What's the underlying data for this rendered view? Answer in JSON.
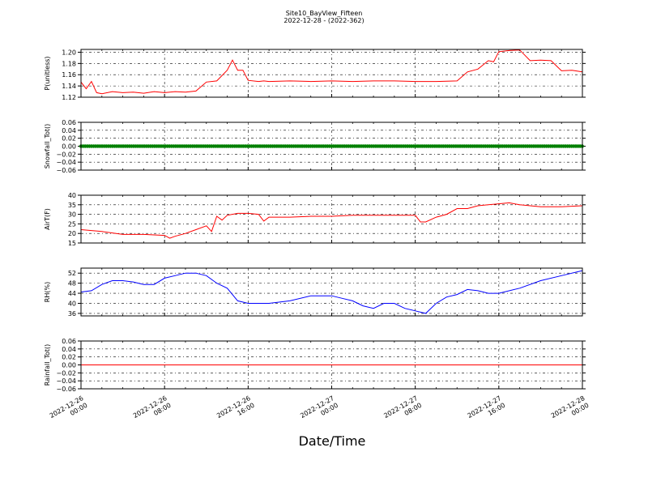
{
  "figure": {
    "title": "Site10_BayView_Fifteen",
    "subtitle": "2022-12-28 - (2022-362)",
    "xlabel": "Date/Time",
    "x_ticks": [
      "2022-12-26 00:00",
      "2022-12-26 08:00",
      "2022-12-26 16:00",
      "2022-12-27 00:00",
      "2022-12-27 08:00",
      "2022-12-27 16:00",
      "2022-12-28 00:00"
    ]
  },
  "chart_data": [
    {
      "type": "line",
      "ylabel": "P(unitless)",
      "color": "#ff0000",
      "ylim": [
        1.12,
        1.205
      ],
      "yticks": [
        1.12,
        1.14,
        1.16,
        1.18,
        1.2
      ],
      "ytick_labels": [
        "1.12",
        "1.14",
        "1.16",
        "1.18",
        "1.20"
      ],
      "grid": true,
      "x": [
        "2022-12-26 00:00",
        "2022-12-26 00:30",
        "2022-12-26 01:00",
        "2022-12-26 01:30",
        "2022-12-26 02:00",
        "2022-12-26 03:00",
        "2022-12-26 04:00",
        "2022-12-26 05:00",
        "2022-12-26 06:00",
        "2022-12-26 07:00",
        "2022-12-26 08:00",
        "2022-12-26 09:00",
        "2022-12-26 10:00",
        "2022-12-26 11:00",
        "2022-12-26 12:00",
        "2022-12-26 13:00",
        "2022-12-26 14:00",
        "2022-12-26 14:30",
        "2022-12-26 15:00",
        "2022-12-26 15:30",
        "2022-12-26 16:00",
        "2022-12-26 17:00",
        "2022-12-26 17:30",
        "2022-12-26 18:00",
        "2022-12-26 20:00",
        "2022-12-26 22:00",
        "2022-12-27 00:00",
        "2022-12-27 02:00",
        "2022-12-27 04:00",
        "2022-12-27 06:00",
        "2022-12-27 08:00",
        "2022-12-27 10:00",
        "2022-12-27 12:00",
        "2022-12-27 13:00",
        "2022-12-27 14:00",
        "2022-12-27 15:00",
        "2022-12-27 15:30",
        "2022-12-27 16:00",
        "2022-12-27 17:00",
        "2022-12-27 18:00",
        "2022-12-27 19:00",
        "2022-12-27 20:00",
        "2022-12-27 21:00",
        "2022-12-27 22:00",
        "2022-12-27 23:00",
        "2022-12-28 00:00"
      ],
      "y": [
        1.147,
        1.135,
        1.148,
        1.128,
        1.126,
        1.13,
        1.128,
        1.129,
        1.127,
        1.13,
        1.128,
        1.13,
        1.129,
        1.131,
        1.147,
        1.149,
        1.168,
        1.186,
        1.168,
        1.168,
        1.15,
        1.148,
        1.149,
        1.148,
        1.149,
        1.148,
        1.149,
        1.148,
        1.149,
        1.149,
        1.148,
        1.148,
        1.149,
        1.165,
        1.17,
        1.185,
        1.183,
        1.201,
        1.203,
        1.204,
        1.185,
        1.186,
        1.185,
        1.167,
        1.168,
        1.165
      ]
    },
    {
      "type": "line",
      "ylabel": "Snowfall_Tot()",
      "color": "#008000",
      "marker": "circle",
      "ylim": [
        -0.06,
        0.06
      ],
      "yticks": [
        -0.06,
        -0.04,
        -0.02,
        0.0,
        0.02,
        0.04,
        0.06
      ],
      "ytick_labels": [
        "−0.06",
        "−0.04",
        "−0.02",
        "0.00",
        "0.02",
        "0.04",
        "0.06"
      ],
      "grid": true,
      "x": [
        "2022-12-26 00:00",
        "2022-12-28 00:00"
      ],
      "y": [
        0.0,
        0.0
      ]
    },
    {
      "type": "line",
      "ylabel": "AirT(F)",
      "color": "#ff0000",
      "ylim": [
        15,
        40
      ],
      "yticks": [
        15,
        20,
        25,
        30,
        35,
        40
      ],
      "ytick_labels": [
        "15",
        "20",
        "25",
        "30",
        "35",
        "40"
      ],
      "grid": true,
      "x": [
        "2022-12-26 00:00",
        "2022-12-26 02:00",
        "2022-12-26 04:00",
        "2022-12-26 06:00",
        "2022-12-26 08:00",
        "2022-12-26 08:30",
        "2022-12-26 09:00",
        "2022-12-26 10:00",
        "2022-12-26 11:00",
        "2022-12-26 12:00",
        "2022-12-26 12:30",
        "2022-12-26 13:00",
        "2022-12-26 13:30",
        "2022-12-26 14:00",
        "2022-12-26 15:00",
        "2022-12-26 16:00",
        "2022-12-26 17:00",
        "2022-12-26 17:30",
        "2022-12-26 18:00",
        "2022-12-26 20:00",
        "2022-12-26 22:00",
        "2022-12-27 00:00",
        "2022-12-27 02:00",
        "2022-12-27 04:00",
        "2022-12-27 06:00",
        "2022-12-27 08:00",
        "2022-12-27 08:30",
        "2022-12-27 09:00",
        "2022-12-27 10:00",
        "2022-12-27 11:00",
        "2022-12-27 12:00",
        "2022-12-27 13:00",
        "2022-12-27 14:00",
        "2022-12-27 15:00",
        "2022-12-27 16:00",
        "2022-12-27 17:00",
        "2022-12-27 18:00",
        "2022-12-27 20:00",
        "2022-12-27 22:00",
        "2022-12-28 00:00"
      ],
      "y": [
        22,
        21,
        19.5,
        19.5,
        19,
        17.5,
        18.5,
        20,
        22,
        24,
        21,
        29,
        27,
        29.5,
        30.5,
        30.5,
        30,
        26.5,
        28.5,
        28.5,
        29,
        29,
        29.5,
        29.5,
        29.5,
        29.5,
        26,
        26,
        28.5,
        30,
        33,
        33,
        34.5,
        35,
        35.5,
        36,
        35,
        34,
        34,
        34.5
      ]
    },
    {
      "type": "line",
      "ylabel": "RH(%)",
      "color": "#0000ff",
      "ylim": [
        35,
        54
      ],
      "yticks": [
        36,
        40,
        44,
        48,
        52
      ],
      "ytick_labels": [
        "36",
        "40",
        "44",
        "48",
        "52"
      ],
      "grid": true,
      "x": [
        "2022-12-26 00:00",
        "2022-12-26 01:00",
        "2022-12-26 02:00",
        "2022-12-26 03:00",
        "2022-12-26 04:00",
        "2022-12-26 05:00",
        "2022-12-26 06:00",
        "2022-12-26 07:00",
        "2022-12-26 08:00",
        "2022-12-26 09:00",
        "2022-12-26 10:00",
        "2022-12-26 11:00",
        "2022-12-26 12:00",
        "2022-12-26 13:00",
        "2022-12-26 14:00",
        "2022-12-26 15:00",
        "2022-12-26 16:00",
        "2022-12-26 18:00",
        "2022-12-26 20:00",
        "2022-12-26 22:00",
        "2022-12-27 00:00",
        "2022-12-27 01:00",
        "2022-12-27 02:00",
        "2022-12-27 03:00",
        "2022-12-27 04:00",
        "2022-12-27 05:00",
        "2022-12-27 06:00",
        "2022-12-27 07:00",
        "2022-12-27 08:00",
        "2022-12-27 09:00",
        "2022-12-27 10:00",
        "2022-12-27 11:00",
        "2022-12-27 12:00",
        "2022-12-27 13:00",
        "2022-12-27 14:00",
        "2022-12-27 15:00",
        "2022-12-27 16:00",
        "2022-12-27 18:00",
        "2022-12-27 20:00",
        "2022-12-27 22:00",
        "2022-12-28 00:00"
      ],
      "y": [
        44.5,
        45,
        47.5,
        49,
        49,
        48.5,
        47.5,
        47.5,
        50,
        51,
        52,
        52,
        51,
        48,
        46,
        41,
        40,
        40,
        41,
        43,
        43,
        42,
        41,
        39,
        38,
        40,
        40,
        38,
        37,
        36,
        40,
        42.5,
        43.5,
        45.5,
        45,
        44,
        44,
        46,
        49,
        51,
        53
      ]
    },
    {
      "type": "line",
      "ylabel": "Rainfall_Tot()",
      "color": "#ff0000",
      "ylim": [
        -0.06,
        0.06
      ],
      "yticks": [
        -0.06,
        -0.04,
        -0.02,
        0.0,
        0.02,
        0.04,
        0.06
      ],
      "ytick_labels": [
        "−0.06",
        "−0.04",
        "−0.02",
        "0.00",
        "0.02",
        "0.04",
        "0.06"
      ],
      "grid": true,
      "x": [
        "2022-12-26 00:00",
        "2022-12-28 00:00"
      ],
      "y": [
        0.0,
        0.0
      ]
    }
  ]
}
